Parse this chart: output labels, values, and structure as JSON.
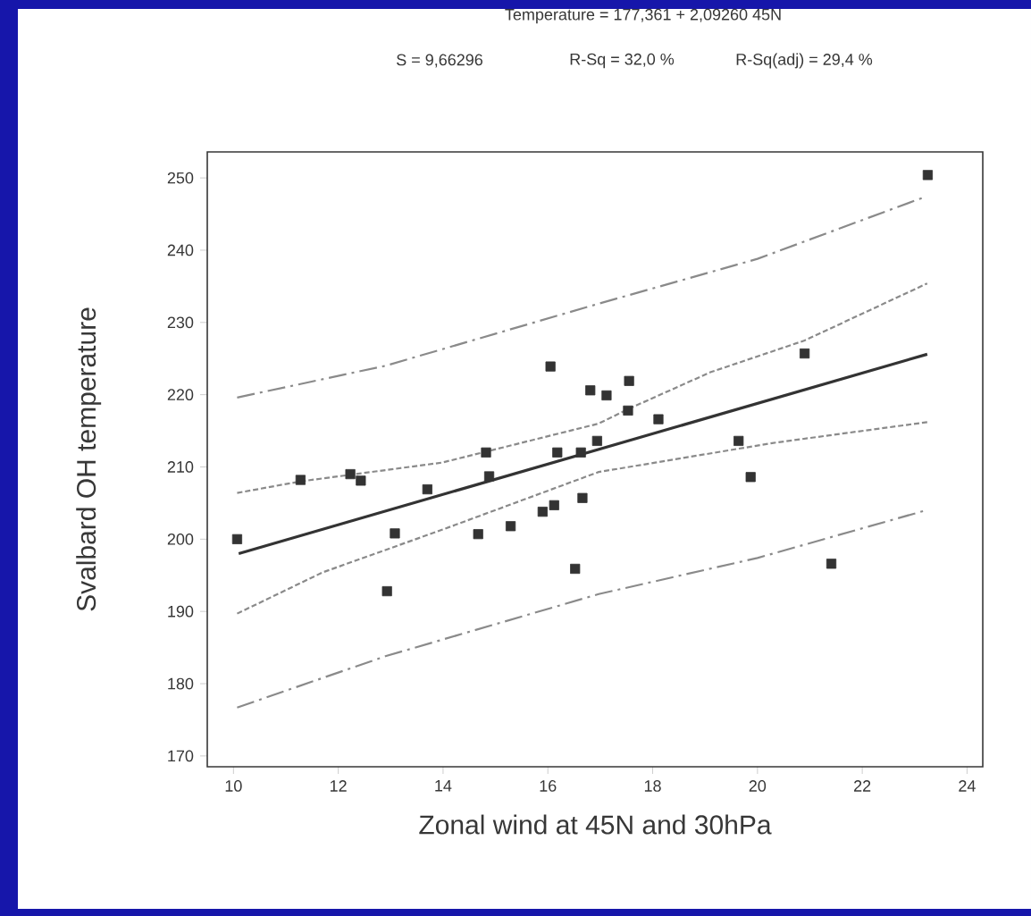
{
  "chart_data": {
    "type": "scatter",
    "title": "Temperature = 177,361 + 2,09260 45N",
    "annotations": [
      "S = 9,66296",
      "R-Sq = 32,0 %",
      "R-Sq(adj) = 29,4 %"
    ],
    "xlabel": "Zonal wind at 45N and 30hPa",
    "ylabel": "Svalbard OH temperature",
    "xlim": [
      9.5,
      24.3
    ],
    "ylim": [
      168.5,
      253.6
    ],
    "xticks": [
      10,
      12,
      14,
      16,
      18,
      20,
      22,
      24
    ],
    "yticks": [
      170,
      180,
      190,
      200,
      210,
      220,
      230,
      240,
      250
    ],
    "grid": false,
    "series": [
      {
        "marker": "square",
        "color": "#333333",
        "x": [
          10.07,
          11.28,
          12.23,
          12.43,
          12.93,
          13.08,
          13.7,
          14.67,
          14.82,
          14.88,
          15.29,
          15.9,
          16.05,
          16.12,
          16.18,
          16.52,
          16.63,
          16.66,
          16.81,
          16.94,
          17.12,
          17.55,
          17.53,
          18.11,
          19.64,
          19.87,
          20.9,
          21.41,
          23.25
        ],
        "values": [
          200.0,
          208.2,
          209.0,
          208.1,
          192.8,
          200.8,
          206.9,
          200.7,
          212.0,
          208.7,
          201.8,
          203.8,
          223.9,
          204.7,
          212.0,
          195.9,
          212.0,
          205.7,
          220.6,
          213.6,
          219.9,
          221.9,
          217.8,
          216.6,
          213.6,
          208.6,
          225.7,
          196.6,
          250.4
        ]
      },
      {
        "type": "line",
        "line_style": "solid",
        "color": "#333333",
        "x": [
          10.1,
          23.24
        ],
        "values": [
          198.0,
          225.6
        ]
      },
      {
        "type": "line",
        "line_style": "dotted",
        "color": "#8a8a8a",
        "x": [
          10.07,
          11.28,
          13.98,
          16.97,
          17.53,
          19.1,
          20.9,
          23.24
        ],
        "values": [
          206.4,
          208.0,
          210.6,
          216.0,
          218.0,
          223.1,
          227.5,
          235.4
        ]
      },
      {
        "type": "line",
        "line_style": "dotted",
        "color": "#8a8a8a",
        "x": [
          10.07,
          11.7,
          13.98,
          16.97,
          18.05,
          20.28,
          23.24
        ],
        "values": [
          189.7,
          195.4,
          201.3,
          209.3,
          210.6,
          213.3,
          216.2
        ]
      },
      {
        "type": "line",
        "line_style": "dashed",
        "color": "#8a8a8a",
        "x": [
          10.07,
          12.9,
          16.97,
          20.0,
          23.17
        ],
        "values": [
          219.6,
          224.0,
          232.6,
          238.8,
          247.3
        ]
      },
      {
        "type": "line",
        "line_style": "dashed",
        "color": "#8a8a8a",
        "x": [
          10.07,
          12.9,
          16.97,
          20.0,
          23.17
        ],
        "values": [
          176.7,
          183.8,
          192.4,
          197.4,
          203.9
        ]
      }
    ]
  }
}
